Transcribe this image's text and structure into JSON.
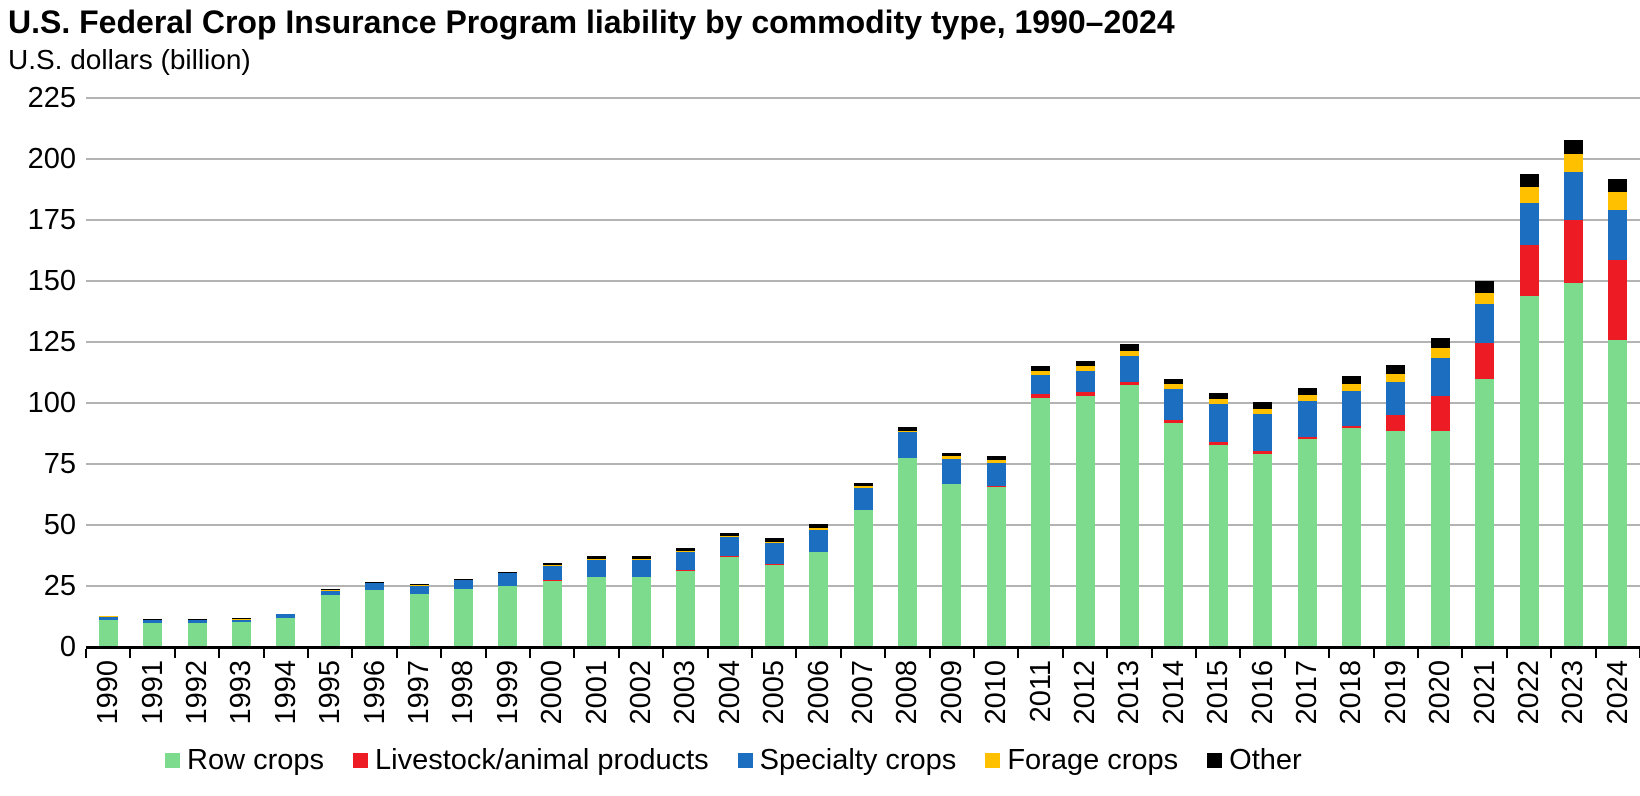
{
  "header": {
    "title": "U.S. Federal Crop Insurance Program liability by commodity type, 1990–2024",
    "subtitle": "U.S. dollars (billion)"
  },
  "colors": {
    "row_crops": "#7cdb8c",
    "livestock": "#ed1c24",
    "specialty": "#1c6fc0",
    "forage": "#ffc000",
    "other": "#000000",
    "gridline": "#b3b3b3",
    "axis": "#000000",
    "text": "#000000",
    "background": "#ffffff"
  },
  "chart_data": {
    "type": "bar",
    "stacked": true,
    "title": "U.S. Federal Crop Insurance Program liability by commodity type, 1990–2024",
    "ylabel": "U.S. dollars (billion)",
    "xlabel": "",
    "ylim": [
      0,
      225
    ],
    "yticks": [
      0,
      25,
      50,
      75,
      100,
      125,
      150,
      175,
      200,
      225
    ],
    "grid": "horizontal",
    "legend_position": "bottom",
    "x_tick_rotation": 90,
    "categories": [
      "1990",
      "1991",
      "1992",
      "1993",
      "1994",
      "1995",
      "1996",
      "1997",
      "1998",
      "1999",
      "2000",
      "2001",
      "2002",
      "2003",
      "2004",
      "2005",
      "2006",
      "2007",
      "2008",
      "2009",
      "2010",
      "2011",
      "2012",
      "2013",
      "2014",
      "2015",
      "2016",
      "2017",
      "2018",
      "2019",
      "2020",
      "2021",
      "2022",
      "2023",
      "2024"
    ],
    "series": [
      {
        "name": "Row crops",
        "color": "#7cdb8c",
        "values": [
          10.9,
          9.7,
          9.8,
          10.1,
          12.0,
          21.2,
          23.4,
          21.7,
          23.6,
          25.0,
          27.2,
          28.8,
          28.6,
          31.3,
          36.9,
          33.6,
          38.9,
          56.1,
          77.3,
          66.8,
          65.5,
          102.2,
          102.9,
          107.2,
          91.9,
          82.7,
          79.3,
          85.1,
          89.7,
          88.5,
          88.5,
          110.0,
          144.0,
          149.3,
          125.8
        ]
      },
      {
        "name": "Livestock/animal products",
        "color": "#ed1c24",
        "values": [
          0.1,
          0.1,
          0.1,
          0.1,
          0.1,
          0.1,
          0.1,
          0.1,
          0.1,
          0.1,
          0.1,
          0.1,
          0.1,
          0.1,
          0.3,
          0.4,
          0.2,
          0.2,
          0.2,
          0.2,
          0.3,
          1.5,
          1.6,
          1.6,
          1.3,
          1.4,
          1.1,
          1.0,
          1.0,
          6.5,
          14.5,
          14.4,
          20.6,
          25.8,
          32.8
        ]
      },
      {
        "name": "Specialty crops",
        "color": "#1c6fc0",
        "values": [
          1.5,
          1.3,
          1.2,
          1.0,
          1.3,
          1.8,
          2.6,
          3.4,
          3.6,
          5.1,
          6.0,
          6.8,
          7.0,
          7.4,
          7.7,
          8.6,
          9.0,
          9.0,
          10.5,
          10.1,
          9.6,
          7.8,
          8.6,
          10.6,
          12.4,
          15.3,
          15.0,
          14.7,
          14.3,
          13.8,
          15.4,
          16.0,
          17.5,
          19.4,
          20.5
        ]
      },
      {
        "name": "Forage crops",
        "color": "#ffc000",
        "values": [
          0.1,
          0.1,
          0.1,
          0.2,
          0.1,
          0.3,
          0.2,
          0.2,
          0.2,
          0.3,
          0.4,
          0.5,
          0.4,
          0.7,
          0.5,
          0.4,
          0.7,
          0.8,
          0.7,
          1.0,
          1.1,
          1.7,
          1.9,
          2.0,
          2.1,
          2.1,
          2.3,
          2.4,
          2.6,
          3.2,
          4.2,
          4.5,
          6.4,
          7.5,
          7.4
        ]
      },
      {
        "name": "Other",
        "color": "#000000",
        "values": [
          0.2,
          0.2,
          0.2,
          0.3,
          0.2,
          0.3,
          0.3,
          0.3,
          0.5,
          0.4,
          0.9,
          1.1,
          1.2,
          1.2,
          1.5,
          1.5,
          1.5,
          1.2,
          1.3,
          1.5,
          1.6,
          2.0,
          2.1,
          3.0,
          2.3,
          2.5,
          2.8,
          3.0,
          3.3,
          3.5,
          4.0,
          5.3,
          5.3,
          5.8,
          5.3
        ]
      }
    ]
  },
  "legend": {
    "items": [
      {
        "label": "Row crops",
        "color": "#7cdb8c"
      },
      {
        "label": "Livestock/animal products",
        "color": "#ed1c24"
      },
      {
        "label": "Specialty crops",
        "color": "#1c6fc0"
      },
      {
        "label": "Forage crops",
        "color": "#ffc000"
      },
      {
        "label": "Other",
        "color": "#000000"
      }
    ]
  }
}
